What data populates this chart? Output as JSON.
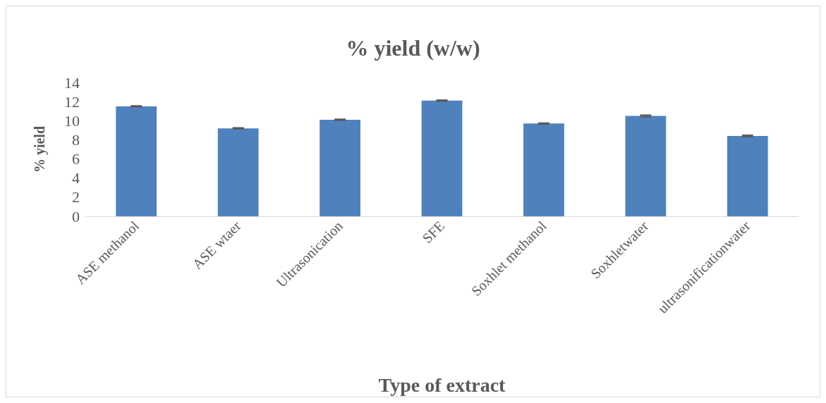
{
  "chart_data": {
    "type": "bar",
    "title": "% yield (w/w)",
    "xlabel": "Type of extract",
    "ylabel": "% yield",
    "categories": [
      "ASE methanol",
      "ASE wtaer",
      "Ultrasonication",
      "SFE",
      "Soxhlet methanol",
      "Soxhletwater",
      "ultrasonificationwater"
    ],
    "values": [
      11.5,
      9.2,
      10.1,
      12.1,
      9.7,
      10.5,
      8.4
    ],
    "errors": [
      0.05,
      0.05,
      0.05,
      0.05,
      0.05,
      0.08,
      0.08
    ],
    "color": "#4f81bd",
    "ylim": [
      0,
      14
    ],
    "yticks": [
      0,
      2,
      4,
      6,
      8,
      10,
      12,
      14
    ],
    "grid": false
  }
}
